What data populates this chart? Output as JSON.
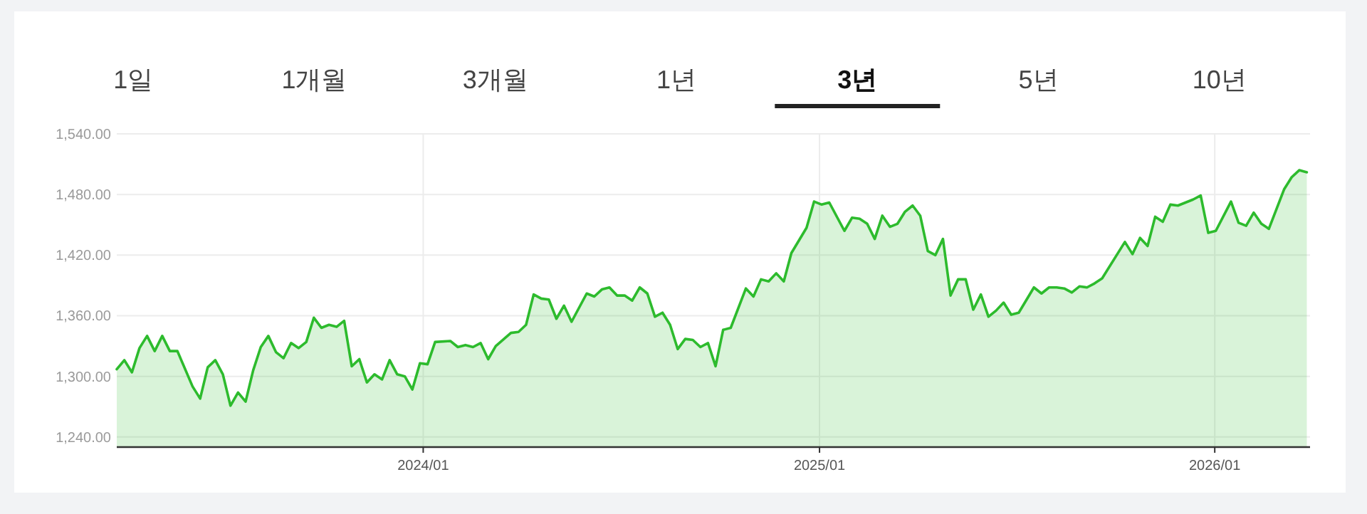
{
  "chart_data": {
    "type": "area",
    "title": "3년",
    "annotations": [
      "1일",
      "1개월",
      "3개월",
      "1년",
      "5년",
      "10년"
    ],
    "series": [
      {
        "color": "#2dbb2d",
        "x": [
          "2023-03-24",
          "2023-03-31",
          "2023-04-07",
          "2023-04-14",
          "2023-04-21",
          "2023-04-28",
          "2023-05-05",
          "2023-05-12",
          "2023-05-19",
          "2023-06-02",
          "2023-06-09",
          "2023-06-16",
          "2023-06-23",
          "2023-06-30",
          "2023-07-07",
          "2023-07-14",
          "2023-07-21",
          "2023-07-28",
          "2023-08-04",
          "2023-08-11",
          "2023-08-18",
          "2023-08-25",
          "2023-09-01",
          "2023-09-08",
          "2023-09-15",
          "2023-09-22",
          "2023-09-29",
          "2023-10-06",
          "2023-10-13",
          "2023-10-20",
          "2023-10-27",
          "2023-11-03",
          "2023-11-10",
          "2023-11-17",
          "2023-11-24",
          "2023-12-01",
          "2023-12-08",
          "2023-12-15",
          "2023-12-22",
          "2023-12-29",
          "2024-01-05",
          "2024-01-12",
          "2024-01-26",
          "2024-02-02",
          "2024-02-09",
          "2024-02-16",
          "2024-02-23",
          "2024-03-01",
          "2024-03-08",
          "2024-03-22",
          "2024-03-29",
          "2024-04-05",
          "2024-04-12",
          "2024-04-19",
          "2024-04-26",
          "2024-05-03",
          "2024-05-10",
          "2024-05-17",
          "2024-05-31",
          "2024-06-07",
          "2024-06-14",
          "2024-06-21",
          "2024-06-28",
          "2024-07-05",
          "2024-07-12",
          "2024-07-19",
          "2024-07-26",
          "2024-08-02",
          "2024-08-09",
          "2024-08-16",
          "2024-08-23",
          "2024-08-30",
          "2024-09-06",
          "2024-09-13",
          "2024-09-20",
          "2024-09-27",
          "2024-10-04",
          "2024-10-11",
          "2024-10-25",
          "2024-11-01",
          "2024-11-08",
          "2024-11-15",
          "2024-11-22",
          "2024-11-29",
          "2024-12-06",
          "2024-12-20",
          "2024-12-27",
          "2025-01-03",
          "2025-01-10",
          "2025-01-24",
          "2025-01-31",
          "2025-02-07",
          "2025-02-14",
          "2025-02-21",
          "2025-02-28",
          "2025-03-07",
          "2025-03-14",
          "2025-03-21",
          "2025-03-28",
          "2025-04-04",
          "2025-04-11",
          "2025-04-18",
          "2025-04-25",
          "2025-05-02",
          "2025-05-09",
          "2025-05-16",
          "2025-05-23",
          "2025-05-30",
          "2025-06-06",
          "2025-06-13",
          "2025-06-20",
          "2025-06-27",
          "2025-07-04",
          "2025-07-18",
          "2025-07-25",
          "2025-08-01",
          "2025-08-08",
          "2025-08-15",
          "2025-08-22",
          "2025-08-29",
          "2025-09-05",
          "2025-09-12",
          "2025-09-19",
          "2025-10-10",
          "2025-10-17",
          "2025-10-24",
          "2025-10-31",
          "2025-11-07",
          "2025-11-14",
          "2025-11-21",
          "2025-11-28",
          "2025-12-05",
          "2025-12-12",
          "2025-12-19",
          "2025-12-26",
          "2026-01-02",
          "2026-01-16",
          "2026-01-23",
          "2026-01-30",
          "2026-02-06",
          "2026-02-13",
          "2026-02-20",
          "2026-03-06",
          "2026-03-13",
          "2026-03-20",
          "2026-03-27"
        ],
        "values": [
          1307,
          1316,
          1304,
          1328,
          1340,
          1325,
          1340,
          1325,
          1325,
          1290,
          1278,
          1309,
          1316,
          1302,
          1271,
          1284,
          1275,
          1306,
          1329,
          1340,
          1324,
          1318,
          1333,
          1328,
          1334,
          1358,
          1348,
          1351,
          1349,
          1355,
          1310,
          1317,
          1294,
          1302,
          1297,
          1316,
          1302,
          1300,
          1287,
          1313,
          1312,
          1334,
          1335,
          1329,
          1331,
          1329,
          1333,
          1317,
          1330,
          1343,
          1344,
          1351,
          1381,
          1377,
          1376,
          1357,
          1370,
          1354,
          1382,
          1379,
          1386,
          1388,
          1380,
          1380,
          1375,
          1388,
          1382,
          1359,
          1363,
          1351,
          1327,
          1337,
          1336,
          1329,
          1333,
          1310,
          1346,
          1348,
          1387,
          1379,
          1396,
          1394,
          1402,
          1394,
          1422,
          1447,
          1473,
          1470,
          1472,
          1444,
          1457,
          1456,
          1451,
          1436,
          1459,
          1448,
          1451,
          1463,
          1469,
          1459,
          1424,
          1420,
          1436,
          1380,
          1396,
          1396,
          1366,
          1381,
          1359,
          1365,
          1373,
          1361,
          1363,
          1388,
          1382,
          1388,
          1388,
          1387,
          1383,
          1389,
          1388,
          1392,
          1397,
          1433,
          1421,
          1437,
          1429,
          1458,
          1453,
          1470,
          1469,
          1472,
          1475,
          1479,
          1442,
          1444,
          1473,
          1452,
          1449,
          1462,
          1451,
          1446,
          1485,
          1497,
          1504,
          1502
        ]
      }
    ],
    "xlim": [
      "2023-03-24",
      "2026-03-30"
    ],
    "xticks": [
      {
        "value": "2024-01-01",
        "label": "2024/01"
      },
      {
        "value": "2025-01-01",
        "label": "2025/01"
      },
      {
        "value": "2026-01-01",
        "label": "2026/01"
      }
    ],
    "ylim": [
      1230,
      1540
    ],
    "yticks": [
      {
        "value": 1240,
        "label": "1,240.00"
      },
      {
        "value": 1300,
        "label": "1,300.00"
      },
      {
        "value": 1360,
        "label": "1,360.00"
      },
      {
        "value": 1420,
        "label": "1,420.00"
      },
      {
        "value": 1480,
        "label": "1,480.00"
      },
      {
        "value": 1540,
        "label": "1,540.00"
      }
    ],
    "grid": true
  }
}
